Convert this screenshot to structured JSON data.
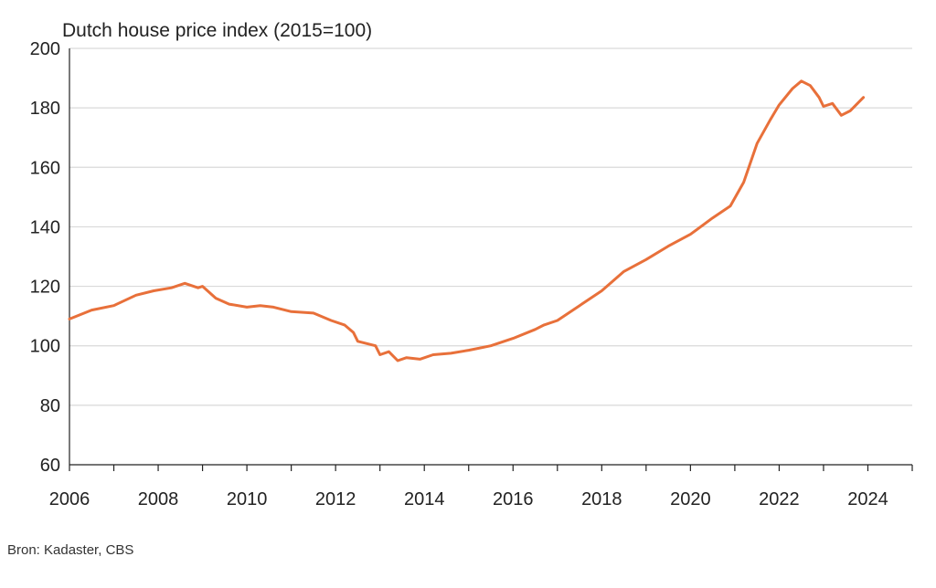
{
  "chart_data": {
    "type": "line",
    "title": "Dutch house price index (2015=100)",
    "xlabel": "",
    "ylabel": "",
    "xlim": [
      2006,
      2025
    ],
    "ylim": [
      60,
      200
    ],
    "x_ticks": [
      2006,
      2008,
      2010,
      2012,
      2014,
      2016,
      2018,
      2020,
      2022,
      2024
    ],
    "y_ticks": [
      60,
      80,
      100,
      120,
      140,
      160,
      180,
      200
    ],
    "grid": "horizontal",
    "line_color": "#E8703A",
    "series": [
      {
        "x": [
          2006.0,
          2006.5,
          2007.0,
          2007.5,
          2007.9,
          2008.3,
          2008.6,
          2008.9,
          2009.0,
          2009.3,
          2009.6,
          2010.0,
          2010.3,
          2010.6,
          2011.0,
          2011.5,
          2011.9,
          2012.2,
          2012.4,
          2012.5,
          2012.9,
          2013.0,
          2013.2,
          2013.4,
          2013.6,
          2013.9,
          2014.2,
          2014.6,
          2015.0,
          2015.5,
          2016.0,
          2016.5,
          2016.7,
          2017.0,
          2017.5,
          2018.0,
          2018.5,
          2019.0,
          2019.5,
          2020.0,
          2020.5,
          2020.9,
          2021.2,
          2021.5,
          2021.8,
          2022.0,
          2022.3,
          2022.5,
          2022.7,
          2022.9,
          2023.0,
          2023.2,
          2023.4,
          2023.6,
          2023.8,
          2023.9
        ],
        "y": [
          109.0,
          112.0,
          113.5,
          117.0,
          118.5,
          119.5,
          121.0,
          119.5,
          120.0,
          116.0,
          114.0,
          113.0,
          113.5,
          113.0,
          111.5,
          111.0,
          108.5,
          107.0,
          104.5,
          101.5,
          100.0,
          97.0,
          98.0,
          95.0,
          96.0,
          95.5,
          97.0,
          97.5,
          98.5,
          100.0,
          102.5,
          105.5,
          107.0,
          108.5,
          113.5,
          118.5,
          125.0,
          129.0,
          133.5,
          137.5,
          143.0,
          147.0,
          155.0,
          168.0,
          176.0,
          181.0,
          186.5,
          189.0,
          187.5,
          183.5,
          180.5,
          181.5,
          177.5,
          179.0,
          182.0,
          183.5
        ]
      }
    ]
  },
  "source": "Bron: Kadaster, CBS"
}
